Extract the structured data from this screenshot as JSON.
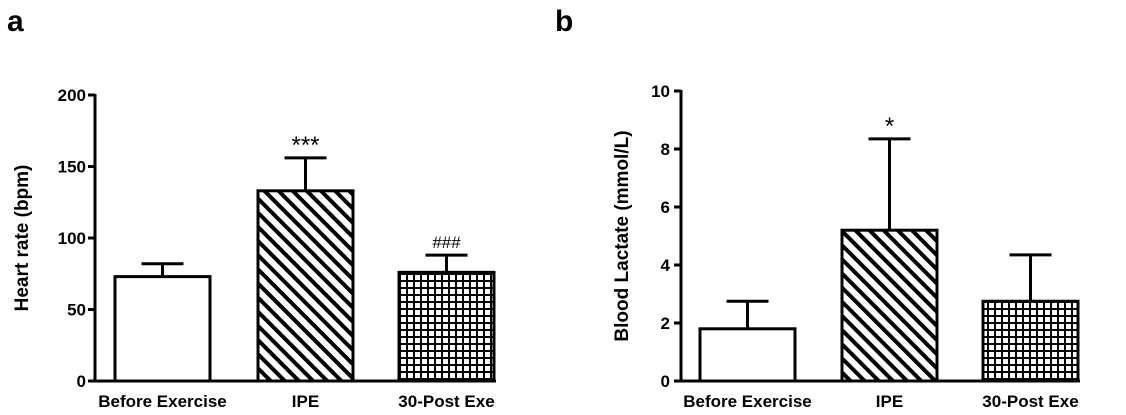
{
  "chart_data": [
    {
      "type": "bar",
      "panel": "a",
      "categories": [
        "Before Exercise",
        "IPE",
        "30-Post Exe"
      ],
      "values": [
        73,
        133,
        76
      ],
      "error": [
        9,
        23,
        12
      ],
      "patterns": [
        "none",
        "diagonal-hatch",
        "grid"
      ],
      "annotations": [
        "",
        "***",
        "###"
      ],
      "ylabel": "Heart rate (bpm)",
      "ylim": [
        0,
        200
      ],
      "yticks": [
        0,
        50,
        100,
        150,
        200
      ],
      "legend": "none",
      "grid": false
    },
    {
      "type": "bar",
      "panel": "b",
      "categories": [
        "Before Exercise",
        "IPE",
        "30-Post Exe"
      ],
      "values": [
        1.8,
        5.2,
        2.75
      ],
      "error": [
        0.95,
        3.15,
        1.6
      ],
      "patterns": [
        "none",
        "diagonal-hatch",
        "grid"
      ],
      "annotations": [
        "",
        "*",
        ""
      ],
      "ylabel": "Blood Lactate (mmol/L)",
      "ylim": [
        0,
        10
      ],
      "yticks": [
        0,
        2,
        4,
        6,
        8,
        10
      ],
      "legend": "none",
      "grid": false
    }
  ]
}
